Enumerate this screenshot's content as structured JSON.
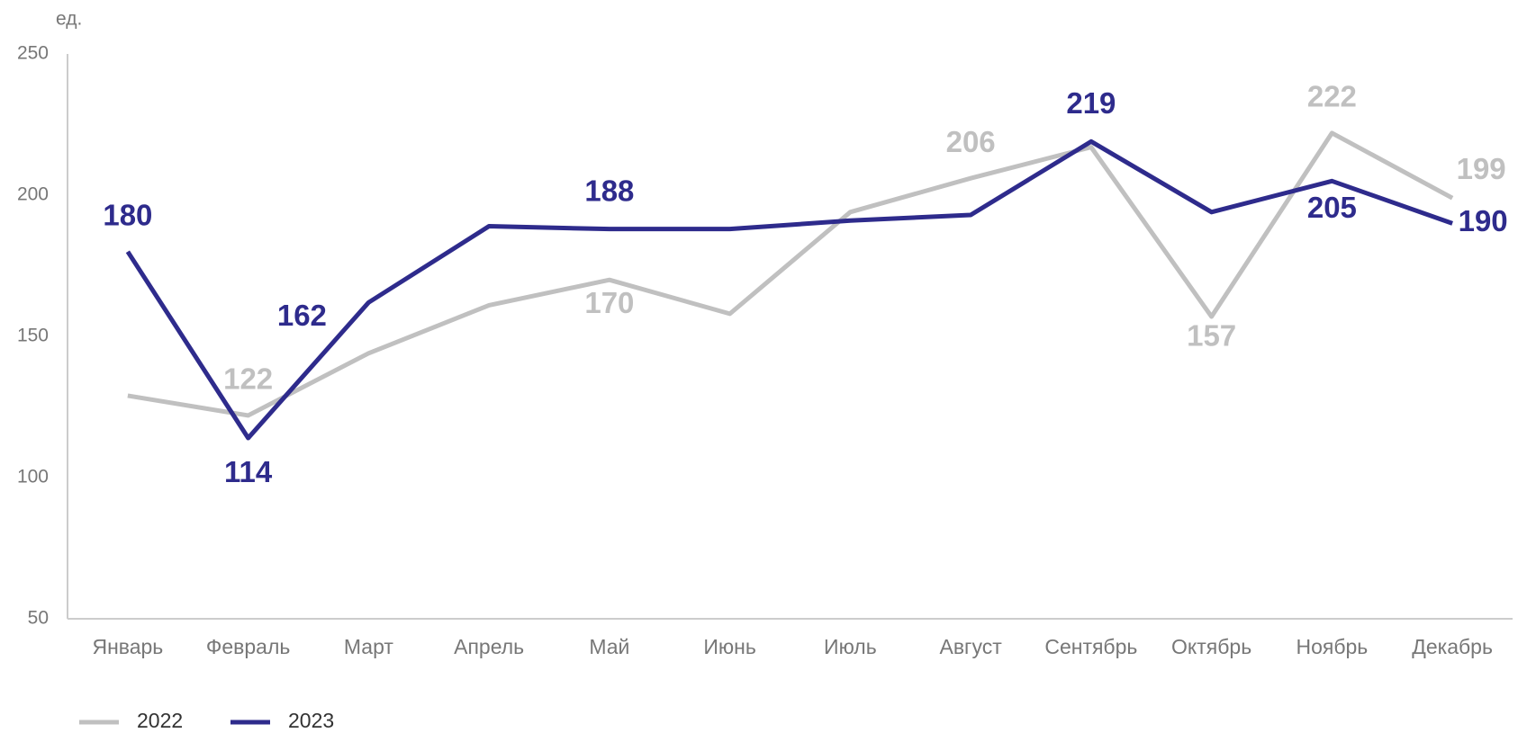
{
  "chart_data": {
    "type": "line",
    "unit_label": "ед.",
    "categories": [
      "Январь",
      "Февраль",
      "Март",
      "Апрель",
      "Май",
      "Июнь",
      "Июль",
      "Август",
      "Сентябрь",
      "Октябрь",
      "Ноябрь",
      "Декабрь"
    ],
    "series": [
      {
        "name": "2022",
        "color": "#c0c0c0",
        "values": [
          129,
          122,
          144,
          161,
          170,
          158,
          194,
          206,
          217,
          157,
          222,
          199
        ],
        "value_labels": [
          null,
          "122",
          null,
          null,
          "170",
          null,
          null,
          "206",
          null,
          "157",
          "222",
          "199"
        ]
      },
      {
        "name": "2023",
        "color": "#2e2b8c",
        "values": [
          180,
          114,
          162,
          189,
          188,
          188,
          191,
          193,
          219,
          194,
          205,
          190
        ],
        "value_labels": [
          "180",
          "114",
          "162",
          null,
          "188",
          null,
          null,
          null,
          "219",
          null,
          "205",
          "190"
        ]
      }
    ],
    "ylim": [
      50,
      250
    ],
    "yticks": [
      50,
      100,
      150,
      200,
      250
    ],
    "grid": false,
    "legend": "bottom-left"
  }
}
